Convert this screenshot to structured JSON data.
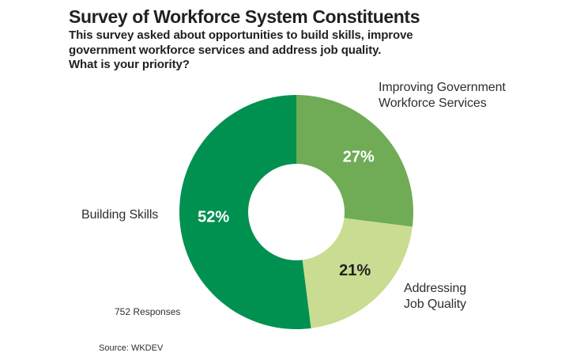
{
  "header": {
    "title": "Survey of Workforce System Constituents",
    "subtitle_lines": [
      "This survey asked about opportunities to build skills, improve",
      "government workforce services and address job quality.",
      "What is your priority?"
    ]
  },
  "chart_data": {
    "type": "pie",
    "donut": true,
    "start_angle_deg": 0,
    "direction": "clockwise",
    "title": "Survey of Workforce System Constituents",
    "categories": [
      "Improving Government Workforce Services",
      "Addressing Job Quality",
      "Building Skills"
    ],
    "values": [
      27,
      21,
      52
    ],
    "value_labels": [
      "27%",
      "21%",
      "52%"
    ],
    "colors": [
      "#6FAC55",
      "#C9DC91",
      "#009150"
    ],
    "value_label_colors": [
      "#FFFFFF",
      "#231F20",
      "#FFFFFF"
    ],
    "responses_note": "752 Responses",
    "source_note": "Source: WKDEV"
  },
  "callouts": {
    "improving_lines": [
      "Improving Government",
      "Workforce Services"
    ],
    "building": "Building Skills",
    "addressing_lines": [
      "Addressing",
      "Job Quality"
    ]
  }
}
